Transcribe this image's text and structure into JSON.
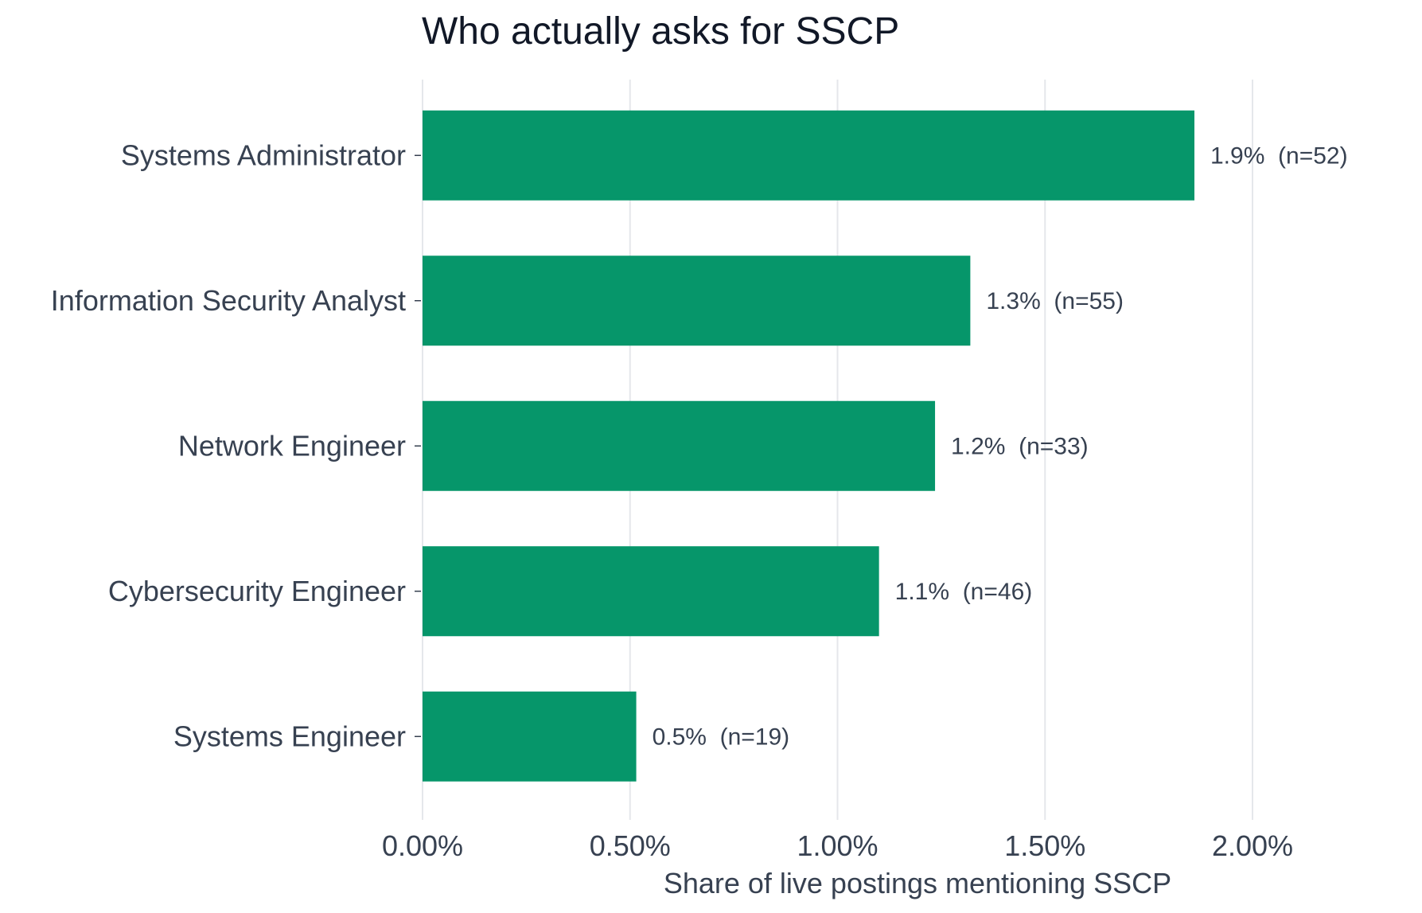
{
  "chart_data": {
    "type": "bar",
    "orientation": "horizontal",
    "title": "Who actually asks for SSCP",
    "xlabel": "Share of live postings mentioning SSCP",
    "ylabel": "",
    "xlim": [
      0,
      2.4
    ],
    "x_ticks": [
      0,
      0.5,
      1.0,
      1.5,
      2.0
    ],
    "x_tick_labels": [
      "0.00%",
      "0.50%",
      "1.00%",
      "1.50%",
      "2.00%"
    ],
    "grid": "vertical",
    "legend": "none",
    "bar_color": "#06966a",
    "categories": [
      "Systems Administrator",
      "Information Security Analyst",
      "Network Engineer",
      "Cybersecurity Engineer",
      "Systems Engineer"
    ],
    "values": [
      1.86,
      1.32,
      1.235,
      1.1,
      0.515
    ],
    "value_labels": [
      "1.9%  (n=52)",
      "1.3%  (n=55)",
      "1.2%  (n=33)",
      "1.1%  (n=46)",
      "0.5%  (n=19)"
    ],
    "n_values": [
      52,
      55,
      33,
      46,
      19
    ]
  }
}
